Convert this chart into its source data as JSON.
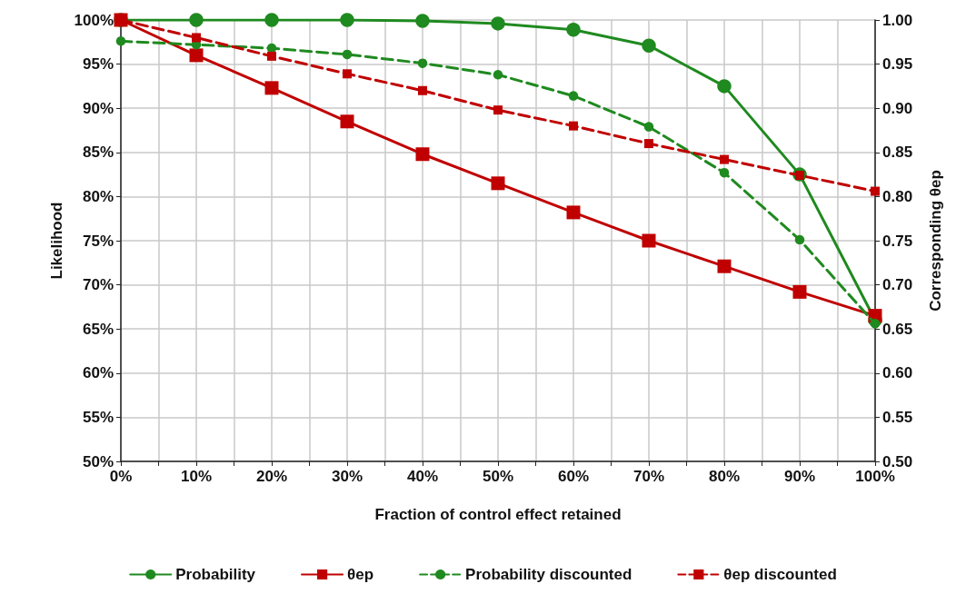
{
  "chart_data": {
    "type": "line",
    "xlabel": "Fraction of control effect retained",
    "ylabel": "Likelihood",
    "y2label": "Corresponding θep",
    "x": [
      0,
      10,
      20,
      30,
      40,
      50,
      60,
      70,
      80,
      90,
      100
    ],
    "series": [
      {
        "name": "Probability",
        "color": "#1f8a1f",
        "marker": "circle",
        "line_style": "solid",
        "values": [
          100,
          100,
          100,
          100,
          99.9,
          99.6,
          98.9,
          97.1,
          92.5,
          82.5,
          66
        ]
      },
      {
        "name": "θep",
        "color": "#c00000",
        "marker": "square",
        "line_style": "solid",
        "axis": "y2",
        "values": [
          1.0,
          0.96,
          0.923,
          0.885,
          0.848,
          0.815,
          0.782,
          0.75,
          0.721,
          0.692,
          0.665
        ]
      },
      {
        "name": "Probability discounted",
        "color": "#1f8a1f",
        "marker": "circle",
        "line_style": "dashed",
        "values": [
          97.6,
          97.2,
          96.8,
          96.1,
          95.1,
          93.8,
          91.4,
          87.9,
          82.7,
          75.1,
          65.6
        ]
      },
      {
        "name": "θep discounted",
        "color": "#c00000",
        "marker": "square",
        "line_style": "dashed",
        "axis": "y2",
        "values": [
          1.0,
          0.98,
          0.959,
          0.939,
          0.92,
          0.898,
          0.88,
          0.86,
          0.842,
          0.824,
          0.806
        ]
      }
    ],
    "xlim": [
      0,
      100
    ],
    "xticks": [
      {
        "value": 0,
        "label": "0%"
      },
      {
        "value": 5,
        "label": null
      },
      {
        "value": 10,
        "label": "10%"
      },
      {
        "value": 15,
        "label": null
      },
      {
        "value": 20,
        "label": "20%"
      },
      {
        "value": 25,
        "label": null
      },
      {
        "value": 30,
        "label": "30%"
      },
      {
        "value": 35,
        "label": null
      },
      {
        "value": 40,
        "label": "40%"
      },
      {
        "value": 45,
        "label": null
      },
      {
        "value": 50,
        "label": "50%"
      },
      {
        "value": 55,
        "label": null
      },
      {
        "value": 60,
        "label": "60%"
      },
      {
        "value": 65,
        "label": null
      },
      {
        "value": 70,
        "label": "70%"
      },
      {
        "value": 75,
        "label": null
      },
      {
        "value": 80,
        "label": "80%"
      },
      {
        "value": 85,
        "label": null
      },
      {
        "value": 90,
        "label": "90%"
      },
      {
        "value": 95,
        "label": null
      },
      {
        "value": 100,
        "label": "100%"
      }
    ],
    "ylim": [
      50,
      100
    ],
    "yticks": [
      {
        "value": 50,
        "label": "50%"
      },
      {
        "value": 55,
        "label": "55%"
      },
      {
        "value": 60,
        "label": "60%"
      },
      {
        "value": 65,
        "label": "65%"
      },
      {
        "value": 70,
        "label": "70%"
      },
      {
        "value": 75,
        "label": "75%"
      },
      {
        "value": 80,
        "label": "80%"
      },
      {
        "value": 85,
        "label": "85%"
      },
      {
        "value": 90,
        "label": "90%"
      },
      {
        "value": 95,
        "label": "95%"
      },
      {
        "value": 100,
        "label": "100%"
      }
    ],
    "y2lim": [
      0.5,
      1.0
    ],
    "y2ticks": [
      {
        "value": 0.5,
        "label": "0.50"
      },
      {
        "value": 0.55,
        "label": "0.55"
      },
      {
        "value": 0.6,
        "label": "0.60"
      },
      {
        "value": 0.65,
        "label": "0.65"
      },
      {
        "value": 0.7,
        "label": "0.70"
      },
      {
        "value": 0.75,
        "label": "0.75"
      },
      {
        "value": 0.8,
        "label": "0.80"
      },
      {
        "value": 0.85,
        "label": "0.85"
      },
      {
        "value": 0.9,
        "label": "0.90"
      },
      {
        "value": 0.95,
        "label": "0.95"
      },
      {
        "value": 1.0,
        "label": "1.00"
      }
    ],
    "grid": true,
    "legend": "bottom"
  }
}
